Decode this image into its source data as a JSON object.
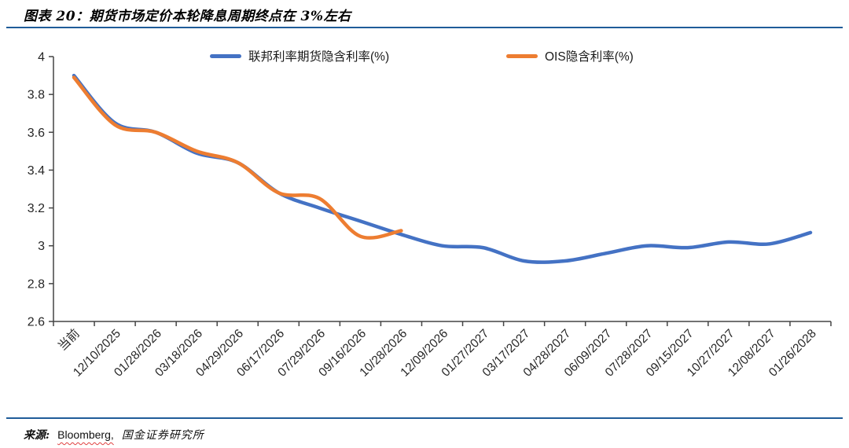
{
  "page": {
    "title": "图表 20：期货市场定价本轮降息周期终点在 3%左右",
    "accent_rule_color": "#1F5C99",
    "source": {
      "prefix": "来源:",
      "bloomberg": "Bloomberg,",
      "institute": "国金证券研究所"
    }
  },
  "chart_data": {
    "type": "line",
    "title": "图表 20：期货市场定价本轮降息周期终点在 3%左右",
    "categories": [
      "当前",
      "12/10/2025",
      "01/28/2026",
      "03/18/2026",
      "04/29/2026",
      "06/17/2026",
      "07/29/2026",
      "09/16/2026",
      "10/28/2026",
      "12/09/2026",
      "01/27/2027",
      "03/17/2027",
      "04/28/2027",
      "06/09/2027",
      "07/28/2027",
      "09/15/2027",
      "10/27/2027",
      "12/08/2027",
      "01/26/2028"
    ],
    "series": [
      {
        "id": "fed-funds-futures",
        "name": "联邦利率期货隐含利率(%)",
        "color": "#4472C4",
        "values": [
          3.9,
          3.65,
          3.6,
          3.49,
          3.44,
          3.28,
          3.2,
          3.13,
          3.06,
          3.0,
          2.99,
          2.92,
          2.92,
          2.96,
          3.0,
          2.99,
          3.02,
          3.01,
          3.07
        ]
      },
      {
        "id": "ois",
        "name": "OIS隐含利率(%)",
        "color": "#ED7D31",
        "values": [
          3.89,
          3.64,
          3.6,
          3.5,
          3.44,
          3.28,
          3.25,
          3.05,
          3.08,
          null,
          null,
          null,
          null,
          null,
          null,
          null,
          null,
          null,
          null
        ]
      }
    ],
    "ylim": [
      2.6,
      4.0
    ],
    "yticks": [
      2.6,
      2.8,
      3.0,
      3.2,
      3.4,
      3.6,
      3.8,
      4.0
    ],
    "ytick_labels": [
      "2.6",
      "2.8",
      "3",
      "3.2",
      "3.4",
      "3.6",
      "3.8",
      "4"
    ],
    "xlabel": "",
    "ylabel": "",
    "grid": false,
    "legend_position": "top",
    "axis_color": "#444444",
    "tick_label_color": "#262626"
  }
}
